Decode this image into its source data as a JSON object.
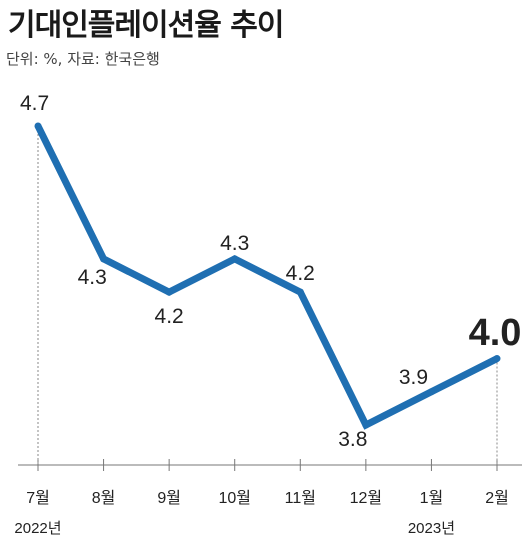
{
  "title": "기대인플레이션율 추이",
  "subtitle": "단위: %, 자료: 한국은행",
  "chart_data": {
    "type": "line",
    "title": "기대인플레이션율 추이",
    "unit": "%",
    "source": "한국은행",
    "categories": [
      "7월",
      "8월",
      "9월",
      "10월",
      "11월",
      "12월",
      "1월",
      "2월"
    ],
    "year_labels": [
      {
        "index": 0,
        "label": "2022년"
      },
      {
        "index": 6,
        "label": "2023년"
      }
    ],
    "values": [
      4.7,
      4.3,
      4.2,
      4.3,
      4.2,
      3.8,
      3.9,
      4.0
    ],
    "data_labels": [
      "4.7",
      "4.3",
      "4.2",
      "4.3",
      "4.2",
      "3.8",
      "3.9",
      "4.0"
    ],
    "line_color": "#1f6fb2",
    "grid": false,
    "highlight_last": true
  }
}
